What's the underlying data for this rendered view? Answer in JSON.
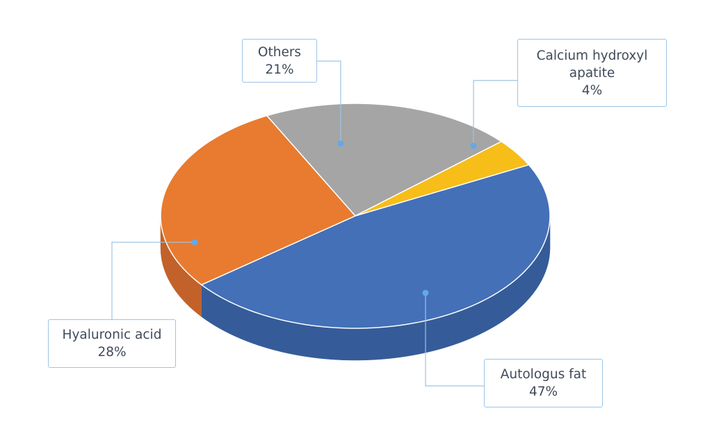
{
  "chart_data": {
    "type": "pie",
    "style": "3d",
    "title": "",
    "unit": "%",
    "series": [
      {
        "slices": [
          {
            "label": "Autologus fat",
            "value": 47,
            "value_label": "47%",
            "color": "#4470b8",
            "side_color": "#355c98"
          },
          {
            "label": "Hyaluronic acid",
            "value": 28,
            "value_label": "28%",
            "color": "#e87b2f",
            "side_color": "#c2622a"
          },
          {
            "label": "Others",
            "value": 21,
            "value_label": "21%",
            "color": "#a5a5a5",
            "side_color": "#878787"
          },
          {
            "label": "Calcium hydroxyl apatite",
            "value": 4,
            "value_label": "4%",
            "color": "#f7bd19",
            "side_color": "#c99a12"
          }
        ]
      }
    ],
    "labels": {
      "autologus": "Autologus fat",
      "hyaluronic": "Hyaluronic acid",
      "others": "Others",
      "calcium_line1": "Calcium hydroxyl",
      "calcium_line2": "apatite"
    },
    "percent_labels": {
      "autologus": "47%",
      "hyaluronic": "28%",
      "others": "21%",
      "calcium": "4%"
    },
    "legend": "none (callout labels)"
  }
}
